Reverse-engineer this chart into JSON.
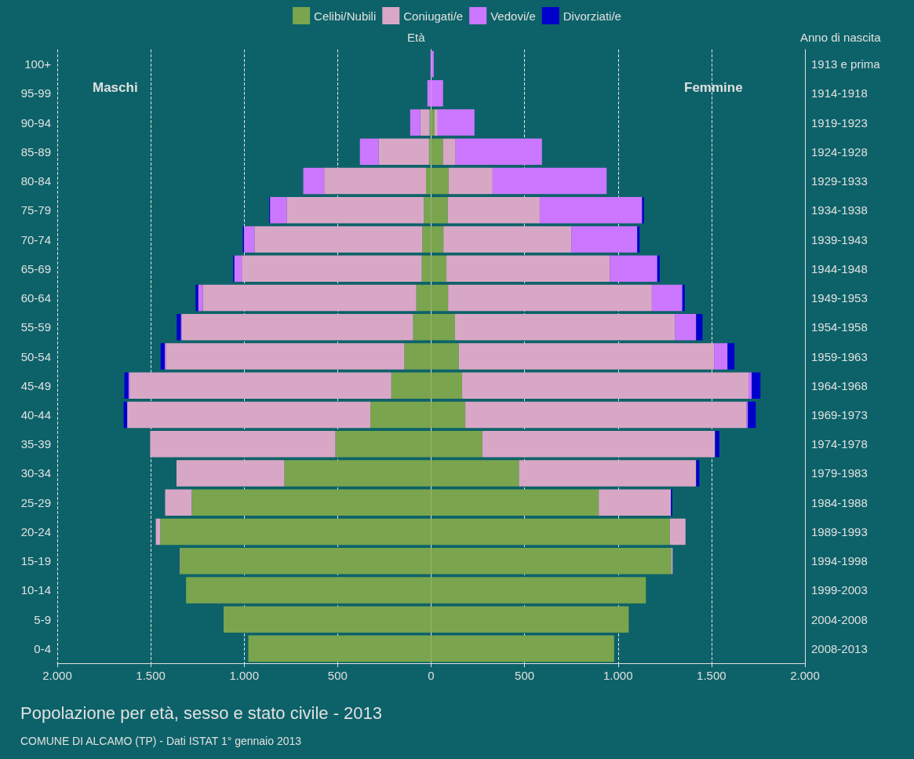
{
  "chart_data": {
    "type": "bar",
    "orientation": "horizontal",
    "stacked": true,
    "title": "Popolazione per età, sesso e stato civile - 2013",
    "ylabel": "Età",
    "y2label": "Anno di nascita",
    "annotations": [
      "Maschi",
      "Femmine",
      "COMUNE DI ALCAMO (TP) - Dati ISTAT 1° gennaio 2013"
    ],
    "categories": [
      "100+",
      "95-99",
      "90-94",
      "85-89",
      "80-84",
      "75-79",
      "70-74",
      "65-69",
      "60-64",
      "55-59",
      "50-54",
      "45-49",
      "40-44",
      "35-39",
      "30-34",
      "25-29",
      "20-24",
      "15-19",
      "10-14",
      "5-9",
      "0-4"
    ],
    "y2_categories": [
      "1913 e prima",
      "1914-1918",
      "1919-1923",
      "1924-1928",
      "1929-1933",
      "1934-1938",
      "1939-1943",
      "1944-1948",
      "1949-1953",
      "1954-1958",
      "1959-1963",
      "1964-1968",
      "1969-1973",
      "1974-1978",
      "1979-1983",
      "1984-1988",
      "1989-1993",
      "1994-1998",
      "1999-2003",
      "2004-2008",
      "2008-2013"
    ],
    "series": [
      {
        "color": "#7aa54e",
        "values": [
          null,
          null,
          -8,
          -11,
          -27,
          -39,
          -47,
          -50,
          -79,
          -96,
          -143,
          -213,
          -325,
          -512,
          -785,
          -1281,
          -1449,
          -1343,
          -1311,
          -1110,
          -978
        ]
      },
      {
        "color": "#d9a7c6",
        "values": [
          null,
          null,
          -50,
          -270,
          -545,
          -734,
          -898,
          -963,
          -1142,
          -1237,
          -1276,
          -1400,
          -1301,
          -991,
          -577,
          -142,
          -24,
          -2,
          null,
          null,
          null
        ]
      },
      {
        "color": "#cc77ff",
        "values": [
          -3,
          -20,
          -54,
          -100,
          -112,
          -89,
          -56,
          -40,
          -25,
          -6,
          -6,
          -6,
          null,
          null,
          null,
          null,
          null,
          null,
          null,
          null,
          null
        ]
      },
      {
        "color": "#0000cc",
        "values": [
          null,
          null,
          null,
          null,
          null,
          -4,
          -6,
          -6,
          -14,
          -22,
          -22,
          -22,
          -19,
          null,
          null,
          null,
          null,
          null,
          null,
          null,
          null
        ]
      },
      {
        "name": "Celibi/Nubili",
        "color": "#7aa54e",
        "values": [
          null,
          null,
          18,
          64,
          94,
          89,
          66,
          82,
          91,
          128,
          148,
          166,
          183,
          274,
          470,
          897,
          1278,
          1285,
          1149,
          1057,
          979
        ]
      },
      {
        "name": "Coniugati/e",
        "color": "#d9a7c6",
        "values": [
          null,
          null,
          17,
          67,
          235,
          492,
          684,
          874,
          1090,
          1176,
          1366,
          1532,
          1504,
          1245,
          948,
          386,
          83,
          7,
          null,
          null,
          null
        ]
      },
      {
        "name": "Vedovi/e",
        "color": "#cc77ff",
        "values": [
          14,
          64,
          197,
          462,
          610,
          548,
          353,
          254,
          163,
          114,
          72,
          17,
          8,
          null,
          null,
          null,
          null,
          null,
          null,
          null,
          null
        ]
      },
      {
        "name": "Divorziati/e",
        "color": "#0000cc",
        "values": [
          null,
          null,
          null,
          null,
          null,
          10,
          12,
          13,
          13,
          34,
          37,
          47,
          42,
          23,
          17,
          7,
          null,
          null,
          null,
          null,
          null
        ]
      }
    ],
    "xlim": [
      -2000,
      2000
    ],
    "xticks": [
      {
        "value": -2000,
        "label": "2.000"
      },
      {
        "value": -1500,
        "label": "1.500"
      },
      {
        "value": -1000,
        "label": "1.000"
      },
      {
        "value": -500,
        "label": "500"
      },
      0,
      500,
      {
        "value": 1000,
        "label": "1.000"
      },
      {
        "value": 1500,
        "label": "1.500"
      },
      {
        "value": 2000,
        "label": "2.000"
      }
    ],
    "grid": "x",
    "legend": "top"
  }
}
